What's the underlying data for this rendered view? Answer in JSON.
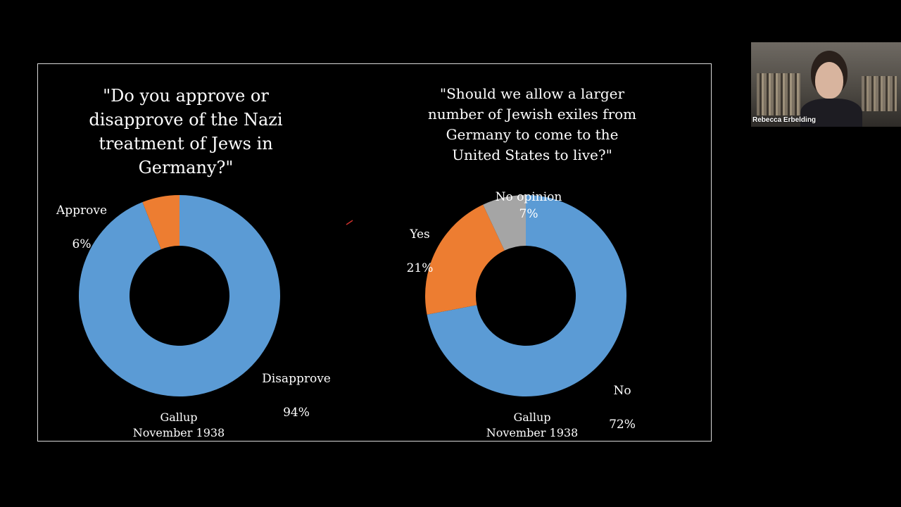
{
  "chart_data": [
    {
      "type": "pie",
      "donut": true,
      "title": "\"Do you approve or\ndisapprove of the Nazi\ntreatment of Jews in\nGermany?\"",
      "slices": [
        {
          "label": "Disapprove",
          "value": 94,
          "value_label": "94%",
          "color": "#5b9bd5"
        },
        {
          "label": "Approve",
          "value": 6,
          "value_label": "6%",
          "color": "#ed7d31"
        }
      ],
      "source": "Gallup",
      "date": "November 1938"
    },
    {
      "type": "pie",
      "donut": true,
      "title": "\"Should we allow a larger\nnumber of Jewish exiles from\nGermany to come to the\nUnited States to live?\"",
      "slices": [
        {
          "label": "No",
          "value": 72,
          "value_label": "72%",
          "color": "#5b9bd5"
        },
        {
          "label": "Yes",
          "value": 21,
          "value_label": "21%",
          "color": "#ed7d31"
        },
        {
          "label": "No opinion",
          "value": 7,
          "value_label": "7%",
          "color": "#a5a5a5"
        }
      ],
      "source": "Gallup",
      "date": "November 1938"
    }
  ],
  "webcam": {
    "participant_name": "Rebecca Erbelding"
  }
}
